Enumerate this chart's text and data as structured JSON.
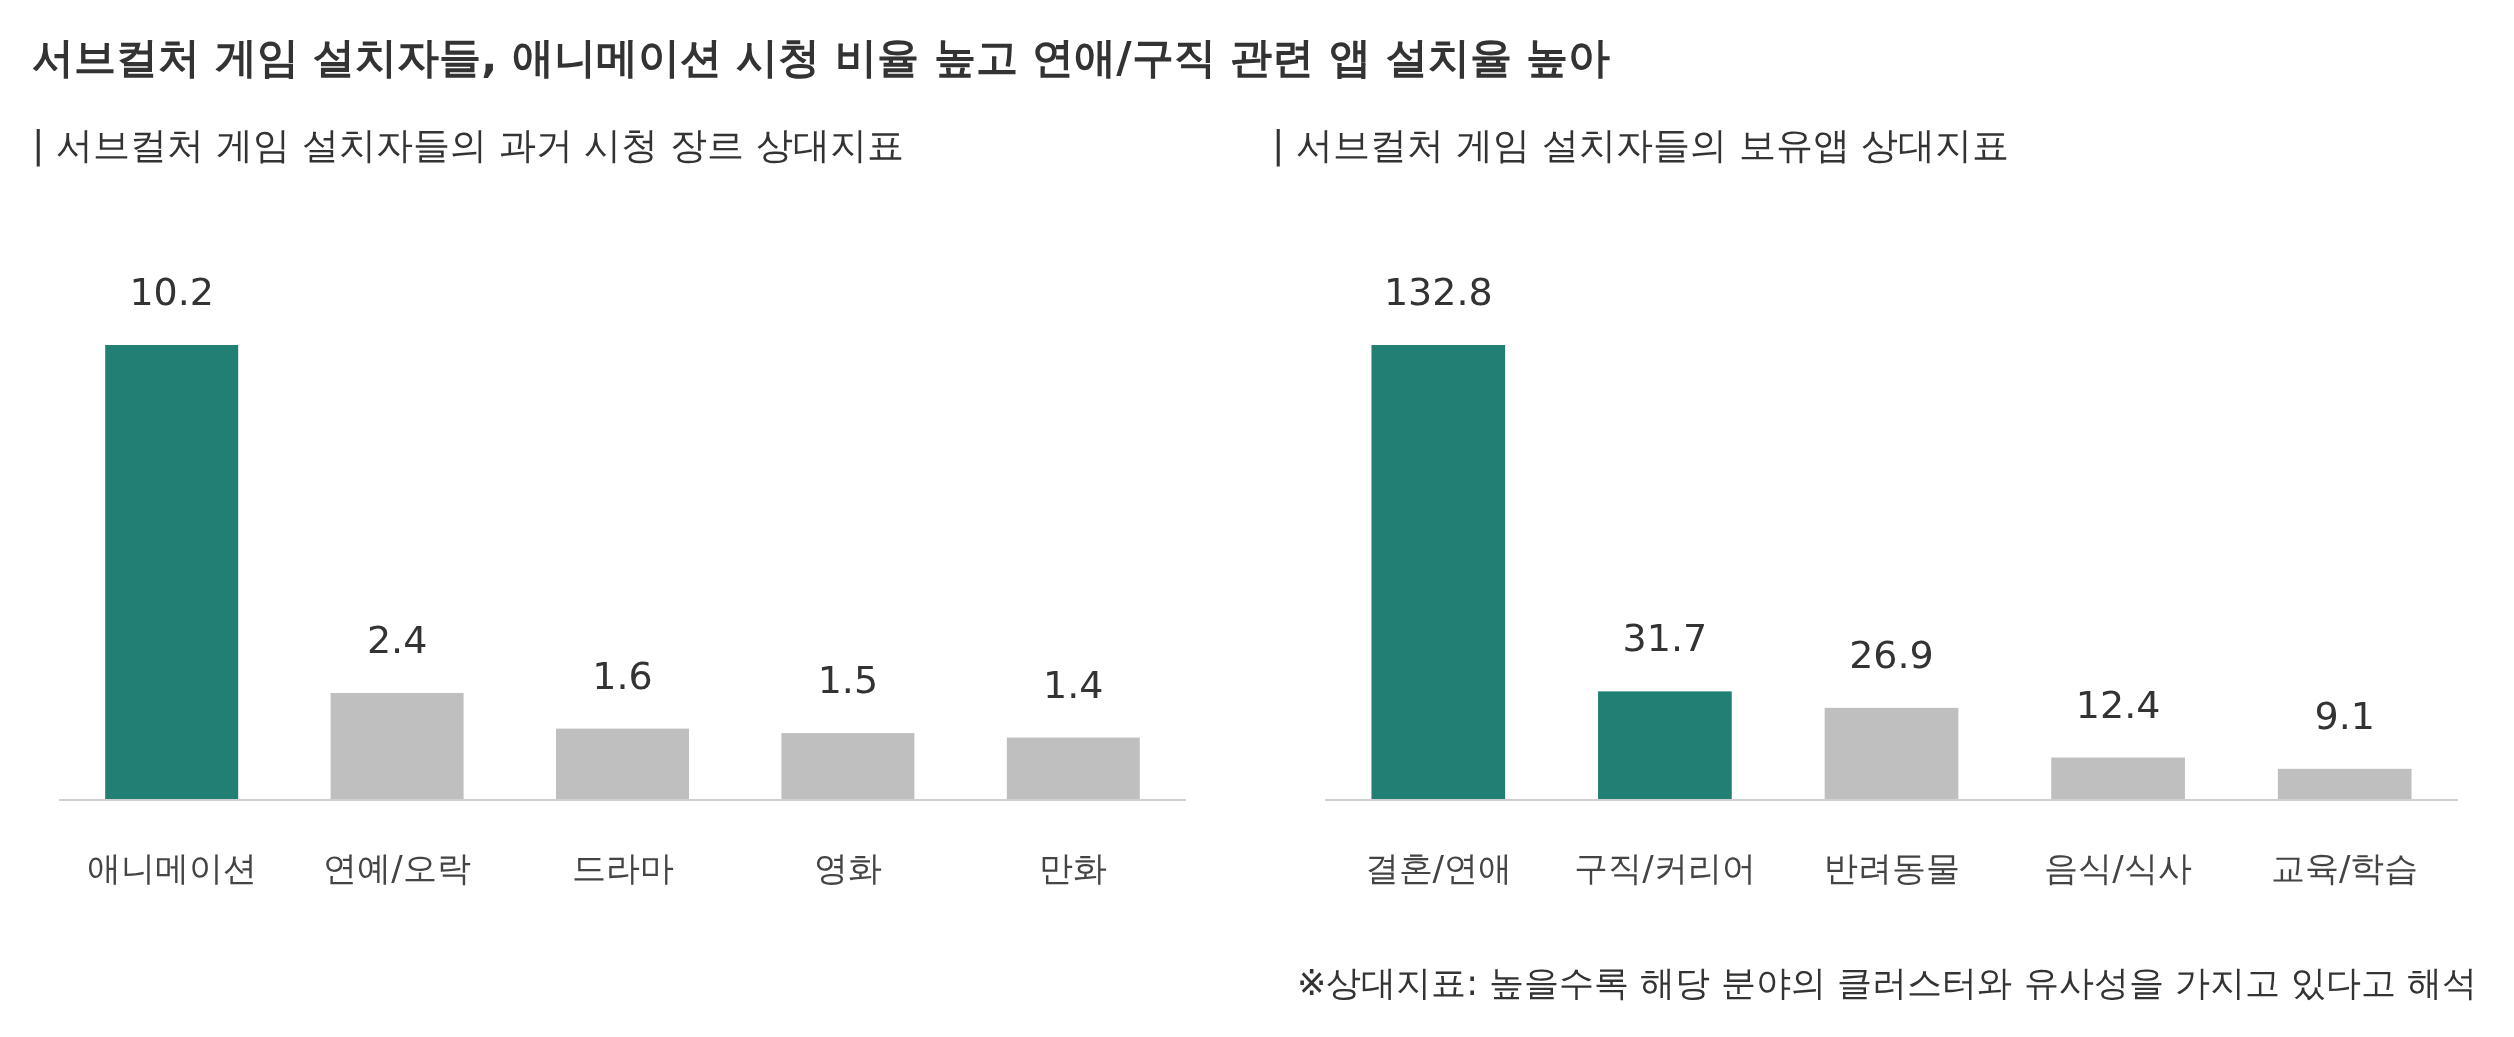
{
  "chart_data": [
    {
      "type": "bar",
      "title": "서브컬처 게임 설치자들, 애니메이션 시청 비율 높고 연애/구직 관련 앱 설치율 높아",
      "subtitle": "| 서브컬처 게임 설치자들의 과거 시청 장르 상대지표",
      "categories": [
        "애니메이션",
        "연예/오락",
        "드라마",
        "영화",
        "만화"
      ],
      "values": [
        10.2,
        2.4,
        1.6,
        1.5,
        1.4
      ],
      "colors": [
        "#217f73",
        "#bfbfbf",
        "#bfbfbf",
        "#bfbfbf",
        "#bfbfbf"
      ],
      "data_labels": true
    },
    {
      "type": "bar",
      "subtitle": "| 서브컬처 게임 설치자들의 보유앱 상대지표",
      "categories": [
        "결혼/연애",
        "구직/커리어",
        "반려동물",
        "음식/식사",
        "교육/학습"
      ],
      "values": [
        132.8,
        31.7,
        26.9,
        12.4,
        9.1
      ],
      "colors": [
        "#217f73",
        "#217f73",
        "#bfbfbf",
        "#bfbfbf",
        "#bfbfbf"
      ],
      "data_labels": true,
      "annotations": [
        "※상대지표: 높을수록 해당 분야의 클러스터와 유사성을 가지고 있다고 해석"
      ]
    }
  ]
}
